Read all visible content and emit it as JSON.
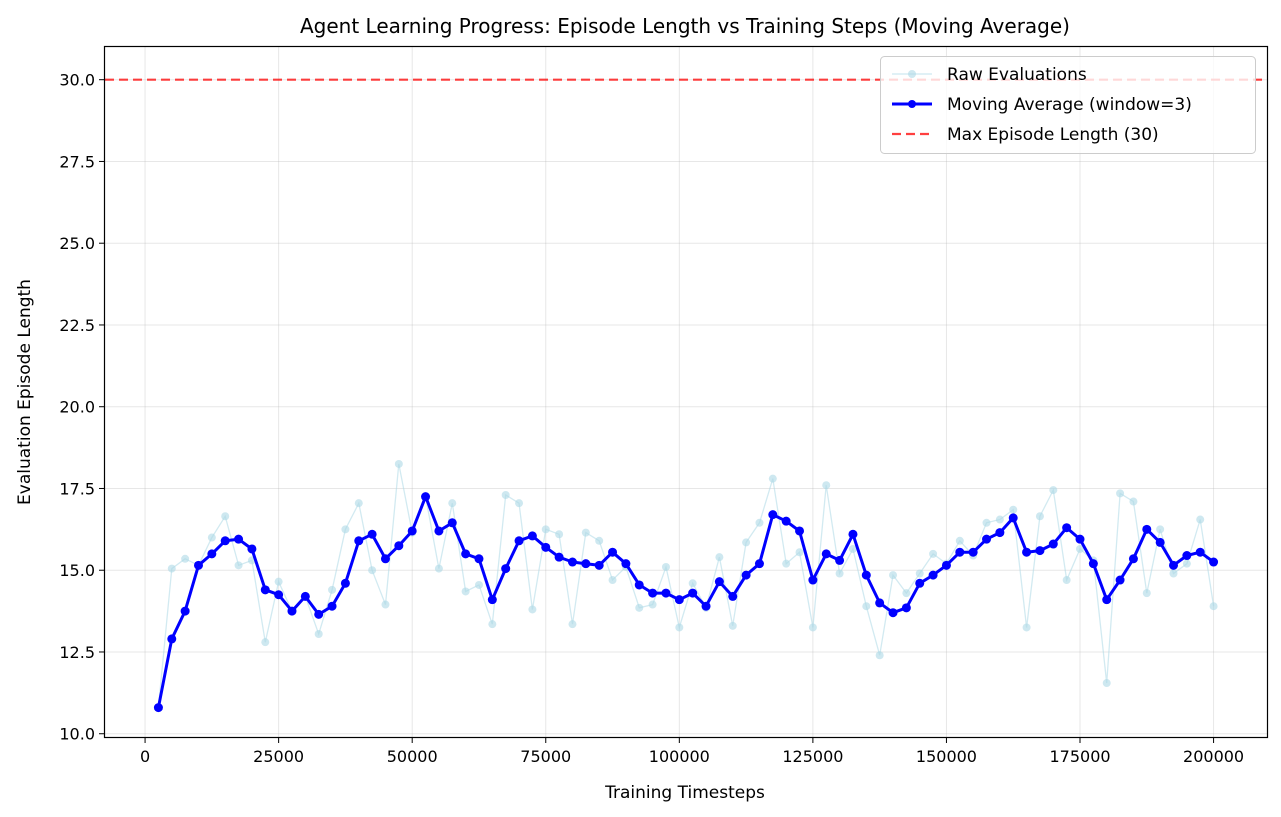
{
  "chart_data": {
    "type": "line",
    "title": "Agent Learning Progress: Episode Length vs Training Steps (Moving Average)",
    "xlabel": "Training Timesteps",
    "ylabel": "Evaluation Episode Length",
    "xlim": [
      -7500,
      210000
    ],
    "ylim": [
      9.9,
      31.0
    ],
    "xticks": [
      0,
      25000,
      50000,
      75000,
      100000,
      125000,
      150000,
      175000,
      200000
    ],
    "yticks": [
      10.0,
      12.5,
      15.0,
      17.5,
      20.0,
      22.5,
      25.0,
      27.5,
      30.0
    ],
    "xtick_labels": [
      "0",
      "25000",
      "50000",
      "75000",
      "100000",
      "125000",
      "150000",
      "175000",
      "200000"
    ],
    "ytick_labels": [
      "10.0",
      "12.5",
      "15.0",
      "17.5",
      "20.0",
      "22.5",
      "25.0",
      "27.5",
      "30.0"
    ],
    "grid": true,
    "legend_position": "top-right",
    "x": [
      2500,
      5000,
      7500,
      10000,
      12500,
      15000,
      17500,
      20000,
      22500,
      25000,
      27500,
      30000,
      32500,
      35000,
      37500,
      40000,
      42500,
      45000,
      47500,
      50000,
      52500,
      55000,
      57500,
      60000,
      62500,
      65000,
      67500,
      70000,
      72500,
      75000,
      77500,
      80000,
      82500,
      85000,
      87500,
      90000,
      92500,
      95000,
      97500,
      100000,
      102500,
      105000,
      107500,
      110000,
      112500,
      115000,
      117500,
      120000,
      122500,
      125000,
      127500,
      130000,
      132500,
      135000,
      137500,
      140000,
      142500,
      145000,
      147500,
      150000,
      152500,
      155000,
      157500,
      160000,
      162500,
      165000,
      167500,
      170000,
      172500,
      175000,
      177500,
      180000,
      182500,
      185000,
      187500,
      190000,
      192500,
      195000,
      197500,
      200000
    ],
    "series": [
      {
        "name": "Raw Evaluations",
        "color": "#add8e6",
        "style": "thin-line-with-markers",
        "values": [
          10.8,
          15.05,
          15.35,
          15.15,
          16.0,
          16.65,
          15.15,
          15.3,
          12.8,
          14.65,
          13.75,
          14.2,
          13.05,
          14.4,
          16.25,
          17.05,
          15.0,
          13.95,
          18.25,
          16.15,
          17.25,
          15.05,
          17.05,
          14.35,
          14.55,
          13.35,
          17.3,
          17.05,
          13.8,
          16.25,
          16.1,
          13.35,
          16.15,
          15.9,
          14.7,
          15.1,
          13.85,
          13.95,
          15.1,
          13.25,
          14.6,
          13.85,
          15.4,
          13.3,
          15.85,
          16.45,
          17.8,
          15.2,
          15.55,
          13.25,
          17.6,
          14.9,
          15.65,
          13.9,
          12.4,
          14.85,
          14.3,
          14.9,
          15.5,
          15.2,
          15.9,
          15.45,
          16.45,
          16.55,
          16.85,
          13.25,
          16.65,
          17.45,
          14.7,
          15.65,
          15.3,
          11.55,
          17.35,
          17.1,
          14.3,
          16.25,
          14.9,
          15.2,
          16.55,
          13.9
        ]
      },
      {
        "name": "Moving Average (window=3)",
        "color": "#0000ff",
        "style": "thick-line-with-markers",
        "values": [
          10.8,
          12.9,
          13.75,
          15.15,
          15.5,
          15.9,
          15.95,
          15.65,
          14.4,
          14.25,
          13.75,
          14.2,
          13.65,
          13.9,
          14.6,
          15.9,
          16.1,
          15.35,
          15.75,
          16.2,
          17.25,
          16.2,
          16.45,
          15.5,
          15.35,
          14.1,
          15.05,
          15.9,
          16.05,
          15.7,
          15.4,
          15.25,
          15.2,
          15.15,
          15.55,
          15.2,
          14.55,
          14.3,
          14.3,
          14.1,
          14.3,
          13.9,
          14.65,
          14.2,
          14.85,
          15.2,
          16.7,
          16.5,
          16.2,
          14.7,
          15.5,
          15.3,
          16.1,
          14.85,
          14.0,
          13.7,
          13.85,
          14.6,
          14.85,
          15.15,
          15.55,
          15.55,
          15.95,
          16.15,
          16.6,
          15.55,
          15.6,
          15.8,
          16.3,
          15.95,
          15.2,
          14.1,
          14.7,
          15.35,
          16.25,
          15.85,
          15.15,
          15.45,
          15.55,
          15.25
        ]
      }
    ],
    "reference_line": {
      "name": "Max Episode Length (30)",
      "value": 30.0,
      "color": "#ff0000",
      "style": "dashed"
    }
  }
}
